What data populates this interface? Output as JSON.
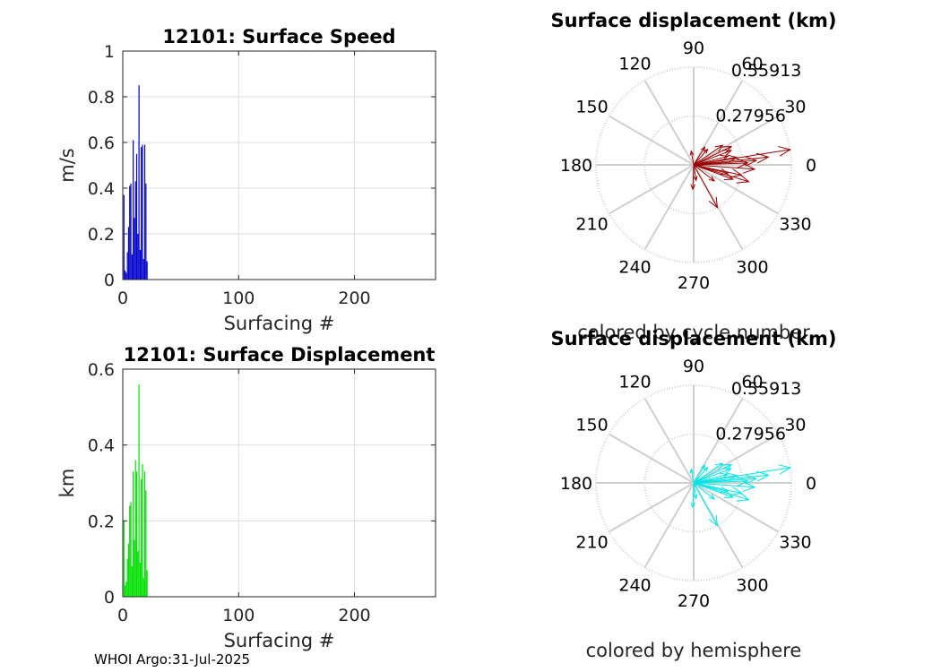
{
  "footer": "WHOI Argo:31-Jul-2025",
  "chart_data": [
    {
      "type": "bar",
      "title": "12101: Surface Speed",
      "xlabel": "Surfacing #",
      "ylabel": "m/s",
      "xlim": [
        0,
        270
      ],
      "ylim": [
        0,
        1
      ],
      "xticks": [
        0,
        100,
        200
      ],
      "yticks": [
        0,
        0.2,
        0.4,
        0.6,
        0.8,
        1
      ],
      "ytick_labels": [
        "0",
        "0.2",
        "0.4",
        "0.6",
        "0.8",
        "1"
      ],
      "color": "#0000cc",
      "x": [
        1,
        2,
        3,
        4,
        5,
        6,
        7,
        8,
        9,
        10,
        11,
        12,
        13,
        14,
        15,
        16,
        17,
        18,
        19,
        20,
        21
      ],
      "values": [
        0.37,
        0.04,
        0.03,
        0.12,
        0.23,
        0.41,
        0.42,
        0.11,
        0.61,
        0.27,
        0.43,
        0.55,
        0.2,
        0.85,
        0.13,
        0.58,
        0.59,
        0.09,
        0.59,
        0.42,
        0.08
      ]
    },
    {
      "type": "bar",
      "title": "12101: Surface Displacement",
      "xlabel": "Surfacing #",
      "ylabel": "km",
      "xlim": [
        0,
        270
      ],
      "ylim": [
        0,
        0.6
      ],
      "xticks": [
        0,
        100,
        200
      ],
      "yticks": [
        0,
        0.2,
        0.4,
        0.6
      ],
      "ytick_labels": [
        "0",
        "0.2",
        "0.4",
        "0.6"
      ],
      "color": "#00e000",
      "x": [
        1,
        2,
        3,
        4,
        5,
        6,
        7,
        8,
        9,
        10,
        11,
        12,
        13,
        14,
        15,
        16,
        17,
        18,
        19,
        20,
        21
      ],
      "values": [
        0.2,
        0.03,
        0.04,
        0.1,
        0.14,
        0.24,
        0.25,
        0.08,
        0.33,
        0.15,
        0.36,
        0.33,
        0.12,
        0.56,
        0.09,
        0.31,
        0.35,
        0.05,
        0.33,
        0.28,
        0.07
      ]
    },
    {
      "type": "polar",
      "title": "Surface displacement (km)",
      "subtitle": "colored by cycle number",
      "color": "#990000",
      "rmax": 0.55913,
      "ring_labels": [
        "0.27956",
        "0.55913"
      ],
      "angle_labels": [
        "0",
        "30",
        "60",
        "90",
        "120",
        "150",
        "180",
        "210",
        "240",
        "270",
        "300",
        "330"
      ],
      "vectors": [
        {
          "r": 0.56,
          "deg": 9
        },
        {
          "r": 0.43,
          "deg": 6
        },
        {
          "r": 0.36,
          "deg": 4
        },
        {
          "r": 0.31,
          "deg": 2
        },
        {
          "r": 0.25,
          "deg": 10
        },
        {
          "r": 0.2,
          "deg": 14
        },
        {
          "r": 0.24,
          "deg": 26
        },
        {
          "r": 0.2,
          "deg": 34
        },
        {
          "r": 0.23,
          "deg": 21
        },
        {
          "r": 0.12,
          "deg": 58
        },
        {
          "r": 0.08,
          "deg": 100
        },
        {
          "r": 0.12,
          "deg": 48
        },
        {
          "r": 0.35,
          "deg": -4
        },
        {
          "r": 0.28,
          "deg": -12
        },
        {
          "r": 0.24,
          "deg": -20
        },
        {
          "r": 0.33,
          "deg": -17
        },
        {
          "r": 0.2,
          "deg": -14
        },
        {
          "r": 0.15,
          "deg": -38
        },
        {
          "r": 0.28,
          "deg": -61
        },
        {
          "r": 0.14,
          "deg": -92
        },
        {
          "r": 0.09,
          "deg": -81
        }
      ]
    },
    {
      "type": "polar",
      "title": "Surface displacement (km)",
      "subtitle": "colored by hemisphere",
      "color": "#00e6e6",
      "rmax": 0.55913,
      "ring_labels": [
        "0.27956",
        "0.55913"
      ],
      "angle_labels": [
        "0",
        "30",
        "60",
        "90",
        "120",
        "150",
        "180",
        "210",
        "240",
        "270",
        "300",
        "330"
      ],
      "vectors": [
        {
          "r": 0.56,
          "deg": 9
        },
        {
          "r": 0.43,
          "deg": 6
        },
        {
          "r": 0.36,
          "deg": 4
        },
        {
          "r": 0.31,
          "deg": 2
        },
        {
          "r": 0.25,
          "deg": 10
        },
        {
          "r": 0.2,
          "deg": 14
        },
        {
          "r": 0.24,
          "deg": 26
        },
        {
          "r": 0.2,
          "deg": 34
        },
        {
          "r": 0.23,
          "deg": 21
        },
        {
          "r": 0.12,
          "deg": 58
        },
        {
          "r": 0.08,
          "deg": 100
        },
        {
          "r": 0.12,
          "deg": 48
        },
        {
          "r": 0.35,
          "deg": -4
        },
        {
          "r": 0.28,
          "deg": -12
        },
        {
          "r": 0.24,
          "deg": -20
        },
        {
          "r": 0.33,
          "deg": -17
        },
        {
          "r": 0.2,
          "deg": -14
        },
        {
          "r": 0.15,
          "deg": -38
        },
        {
          "r": 0.28,
          "deg": -61
        },
        {
          "r": 0.14,
          "deg": -92
        },
        {
          "r": 0.09,
          "deg": -81
        }
      ]
    }
  ]
}
